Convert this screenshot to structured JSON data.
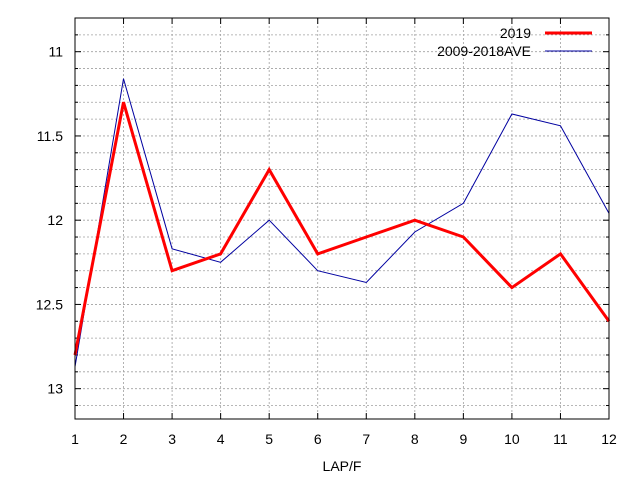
{
  "chart_data": {
    "type": "line",
    "xlabel": "LAP/F",
    "ylabel": "",
    "x": [
      1,
      2,
      3,
      4,
      5,
      6,
      7,
      8,
      9,
      10,
      11,
      12
    ],
    "xlim": [
      1,
      12
    ],
    "ylim": [
      13.18,
      10.8
    ],
    "y_inverted": true,
    "y_ticks": [
      11,
      11.5,
      12,
      12.5,
      13
    ],
    "y_tick_labels": [
      "11",
      "11.5",
      "12",
      "12.5",
      "13"
    ],
    "y_minor_step": 0.1,
    "grid": true,
    "legend_position": "top-right",
    "series": [
      {
        "name": "2019",
        "color": "#ff0000",
        "values": [
          12.8,
          11.3,
          12.3,
          12.2,
          11.7,
          12.2,
          12.1,
          12.0,
          12.1,
          12.4,
          12.2,
          12.6
        ]
      },
      {
        "name": "2009-2018AVE",
        "color": "#0000a0",
        "values": [
          12.87,
          11.16,
          12.17,
          12.25,
          12.0,
          12.3,
          12.37,
          12.07,
          11.9,
          11.37,
          11.44,
          11.96
        ]
      }
    ]
  }
}
